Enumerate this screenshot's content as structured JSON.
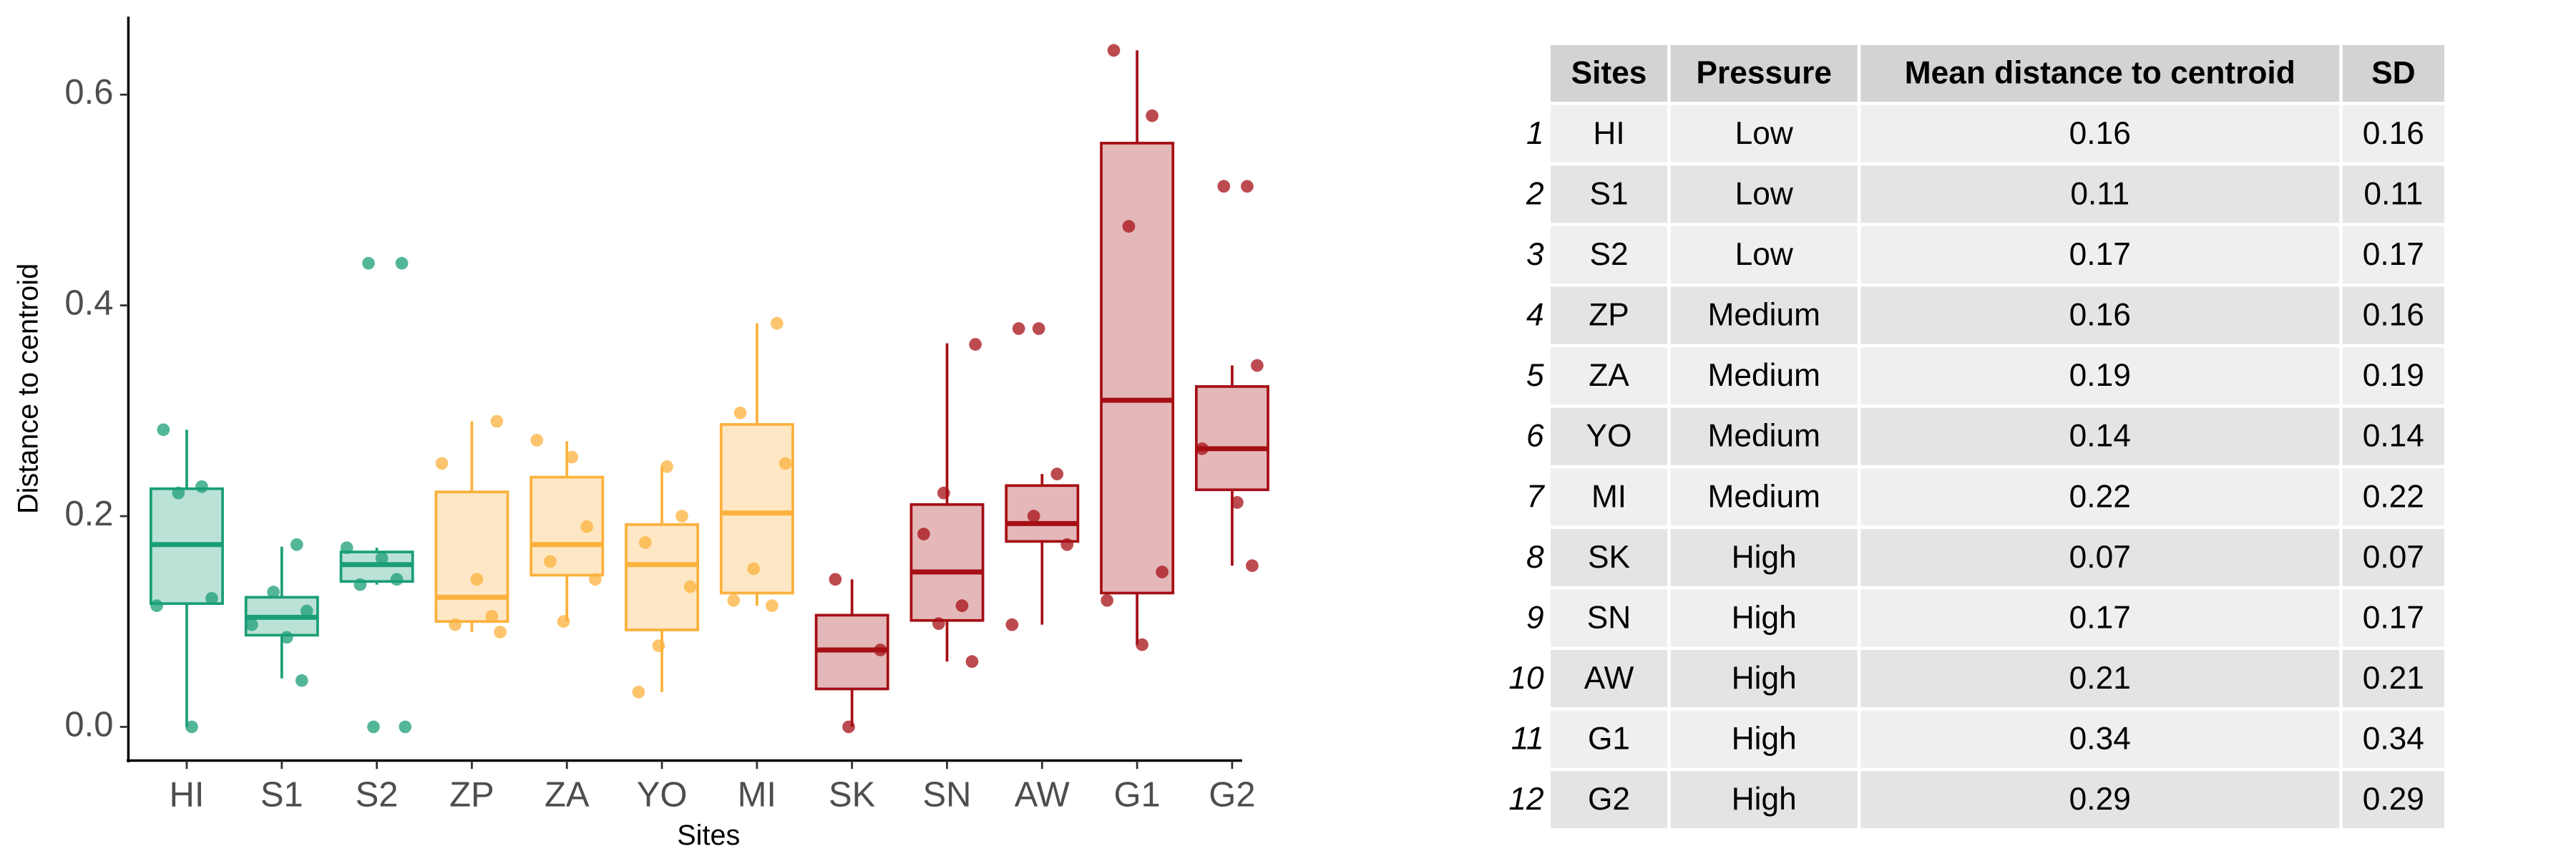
{
  "chart_data": {
    "type": "box",
    "x_label": "Sites",
    "y_label": "Distance to centroid",
    "categories": [
      "HI",
      "S1",
      "S2",
      "ZP",
      "ZA",
      "YO",
      "MI",
      "SK",
      "SN",
      "AW",
      "G1",
      "G2"
    ],
    "colors": [
      "#1b9e77",
      "#1b9e77",
      "#1b9e77",
      "#fbb13c",
      "#fbb13c",
      "#fbb13c",
      "#fbb13c",
      "#a50f15",
      "#a50f15",
      "#a50f15",
      "#a50f15",
      "#a50f15"
    ],
    "boxes": [
      {
        "low": 0.0,
        "q1": 0.117,
        "median": 0.173,
        "q3": 0.226,
        "high": 0.282
      },
      {
        "low": 0.046,
        "q1": 0.087,
        "median": 0.104,
        "q3": 0.123,
        "high": 0.171
      },
      {
        "low": 0.135,
        "q1": 0.138,
        "median": 0.154,
        "q3": 0.166,
        "high": 0.17
      },
      {
        "low": 0.09,
        "q1": 0.1,
        "median": 0.123,
        "q3": 0.223,
        "high": 0.29
      },
      {
        "low": 0.1,
        "q1": 0.144,
        "median": 0.173,
        "q3": 0.237,
        "high": 0.271
      },
      {
        "low": 0.033,
        "q1": 0.092,
        "median": 0.154,
        "q3": 0.192,
        "high": 0.247
      },
      {
        "low": 0.115,
        "q1": 0.127,
        "median": 0.203,
        "q3": 0.287,
        "high": 0.383
      },
      {
        "low": 0.0,
        "q1": 0.036,
        "median": 0.073,
        "q3": 0.106,
        "high": 0.14
      },
      {
        "low": 0.062,
        "q1": 0.101,
        "median": 0.147,
        "q3": 0.211,
        "high": 0.364
      },
      {
        "low": 0.097,
        "q1": 0.176,
        "median": 0.193,
        "q3": 0.229,
        "high": 0.24
      },
      {
        "low": 0.078,
        "q1": 0.127,
        "median": 0.31,
        "q3": 0.554,
        "high": 0.642
      },
      {
        "low": 0.153,
        "q1": 0.225,
        "median": 0.264,
        "q3": 0.323,
        "high": 0.343
      }
    ],
    "points": [
      [
        0.282,
        0.228,
        0.222,
        0.122,
        0.115,
        0.0
      ],
      [
        0.173,
        0.128,
        0.11,
        0.097,
        0.085,
        0.044
      ],
      [
        0.44,
        0.44,
        0.17,
        0.16,
        0.14,
        0.135,
        0.0,
        0.0
      ],
      [
        0.29,
        0.25,
        0.14,
        0.105,
        0.097,
        0.09
      ],
      [
        0.272,
        0.256,
        0.19,
        0.157,
        0.14,
        0.1
      ],
      [
        0.247,
        0.2,
        0.175,
        0.133,
        0.077,
        0.033
      ],
      [
        0.383,
        0.298,
        0.25,
        0.15,
        0.12,
        0.115
      ],
      [
        0.14,
        0.073,
        0.0
      ],
      [
        0.363,
        0.222,
        0.183,
        0.115,
        0.098,
        0.062
      ],
      [
        0.378,
        0.378,
        0.24,
        0.2,
        0.173,
        0.097
      ],
      [
        0.642,
        0.58,
        0.475,
        0.147,
        0.12,
        0.078
      ],
      [
        0.513,
        0.513,
        0.343,
        0.264,
        0.213,
        0.153
      ]
    ],
    "ylim": [
      -0.032,
      0.674
    ],
    "yticks": [
      {
        "value": 0,
        "label": "0.0"
      },
      {
        "value": 0.2,
        "label": "0.2"
      },
      {
        "value": 0.4,
        "label": "0.4"
      },
      {
        "value": 0.6,
        "label": "0.6"
      }
    ]
  },
  "table": {
    "columns": [
      "Sites",
      "Pressure",
      "Mean distance to centroid",
      "SD"
    ],
    "rows": [
      [
        1,
        "HI",
        "Low",
        0.16,
        0.16
      ],
      [
        2,
        "S1",
        "Low",
        0.11,
        0.11
      ],
      [
        3,
        "S2",
        "Low",
        0.17,
        0.17
      ],
      [
        4,
        "ZP",
        "Medium",
        0.16,
        0.16
      ],
      [
        5,
        "ZA",
        "Medium",
        0.19,
        0.19
      ],
      [
        6,
        "YO",
        "Medium",
        0.14,
        0.14
      ],
      [
        7,
        "MI",
        "Medium",
        0.22,
        0.22
      ],
      [
        8,
        "SK",
        "High",
        0.07,
        0.07
      ],
      [
        9,
        "SN",
        "High",
        0.17,
        0.17
      ],
      [
        10,
        "AW",
        "High",
        0.21,
        0.21
      ],
      [
        11,
        "G1",
        "High",
        0.34,
        0.34
      ],
      [
        12,
        "G2",
        "High",
        0.29,
        0.29
      ]
    ]
  }
}
